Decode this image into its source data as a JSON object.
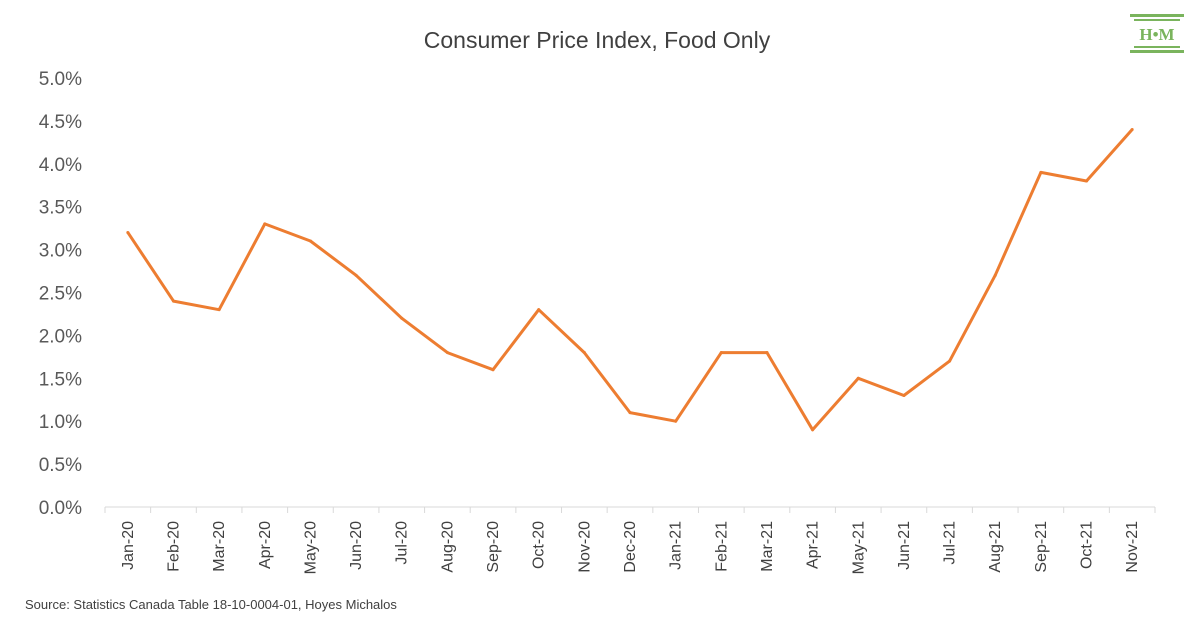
{
  "chart_data": {
    "type": "line",
    "title": "Consumer Price Index, Food Only",
    "categories": [
      "Jan-20",
      "Feb-20",
      "Mar-20",
      "Apr-20",
      "May-20",
      "Jun-20",
      "Jul-20",
      "Aug-20",
      "Sep-20",
      "Oct-20",
      "Nov-20",
      "Dec-20",
      "Jan-21",
      "Feb-21",
      "Mar-21",
      "Apr-21",
      "May-21",
      "Jun-21",
      "Jul-21",
      "Aug-21",
      "Sep-21",
      "Oct-21",
      "Nov-21"
    ],
    "series": [
      {
        "values": [
          3.2,
          2.4,
          2.3,
          3.3,
          3.1,
          2.7,
          2.2,
          1.8,
          1.6,
          2.3,
          1.8,
          1.1,
          1.0,
          1.8,
          1.8,
          0.9,
          1.5,
          1.3,
          1.7,
          2.7,
          3.9,
          3.8,
          4.4
        ],
        "color": "#ed7d31"
      }
    ],
    "yticks": [
      "0.0%",
      "0.5%",
      "1.0%",
      "1.5%",
      "2.0%",
      "2.5%",
      "3.0%",
      "3.5%",
      "4.0%",
      "4.5%",
      "5.0%"
    ],
    "ylim": [
      0,
      5
    ],
    "grid": false,
    "legend": "none"
  },
  "source_note": "Source: Statistics Canada Table 18-10-0004-01, Hoyes Michalos",
  "logo": {
    "text": "H•M",
    "color": "#7ab45d"
  }
}
